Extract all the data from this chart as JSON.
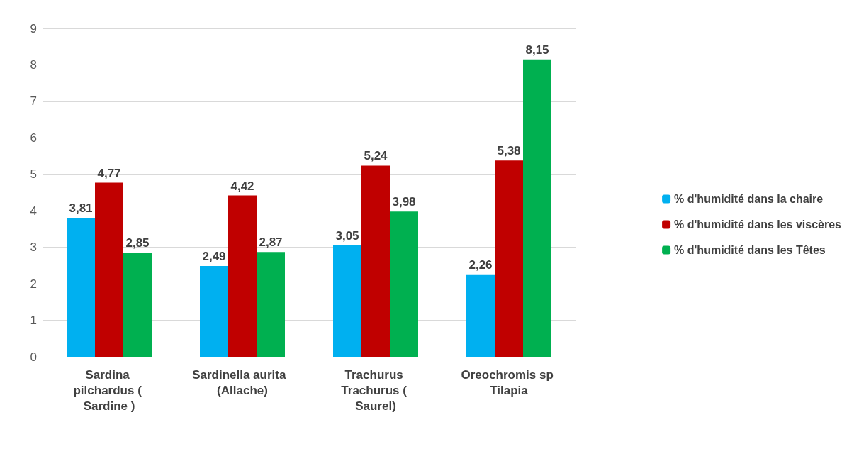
{
  "chart_data": {
    "type": "bar",
    "categories": [
      "Sardina pilchardus ( Sardine )",
      "Sardinella aurita  (Allache)",
      "Trachurus Trachurus ( Saurel)",
      "Oreochromis sp Tilapia"
    ],
    "series": [
      {
        "name": "% d'humidité dans la chaire",
        "color": "#00b0f0",
        "values": [
          3.81,
          2.49,
          3.05,
          2.26
        ],
        "value_labels": [
          "3,81",
          "2,49",
          "3,05",
          "2,26"
        ]
      },
      {
        "name": "% d'humidité dans les viscères",
        "color": "#c00000",
        "values": [
          4.77,
          4.42,
          5.24,
          5.38
        ],
        "value_labels": [
          "4,77",
          "4,42",
          "5,24",
          "5,38"
        ]
      },
      {
        "name": "% d'humidité dans les Têtes",
        "color": "#00b050",
        "values": [
          2.85,
          2.87,
          3.98,
          8.15
        ],
        "value_labels": [
          "2,85",
          "2,87",
          "3,98",
          "8,15"
        ]
      }
    ],
    "ylim": [
      0,
      9
    ],
    "yticks": [
      0,
      1,
      2,
      3,
      4,
      5,
      6,
      7,
      8,
      9
    ],
    "grid": "y",
    "legend": "right"
  }
}
